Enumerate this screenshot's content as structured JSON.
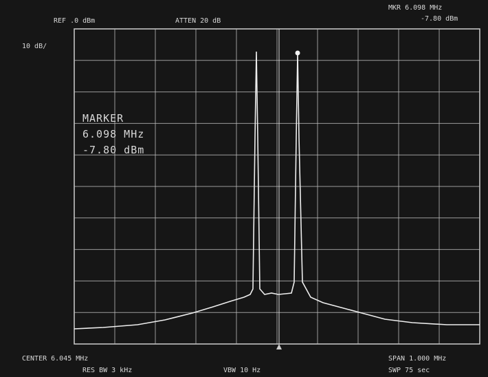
{
  "header": {
    "ref": "REF .0 dBm",
    "atten": "ATTEN 20 dB",
    "marker_freq": "MKR 6.098 MHz",
    "marker_level": "-7.80 dBm"
  },
  "scale": "10 dB/",
  "marker_box": {
    "title": "MARKER",
    "freq": "6.098 MHz",
    "level": "-7.80 dBm"
  },
  "footer": {
    "center": "CENTER 6.045 MHz",
    "res_bw": "RES BW 3 kHz",
    "vbw": "VBW 10 Hz",
    "span": "SPAN 1.000 MHz",
    "sweep": "SWP 75 sec"
  }
}
